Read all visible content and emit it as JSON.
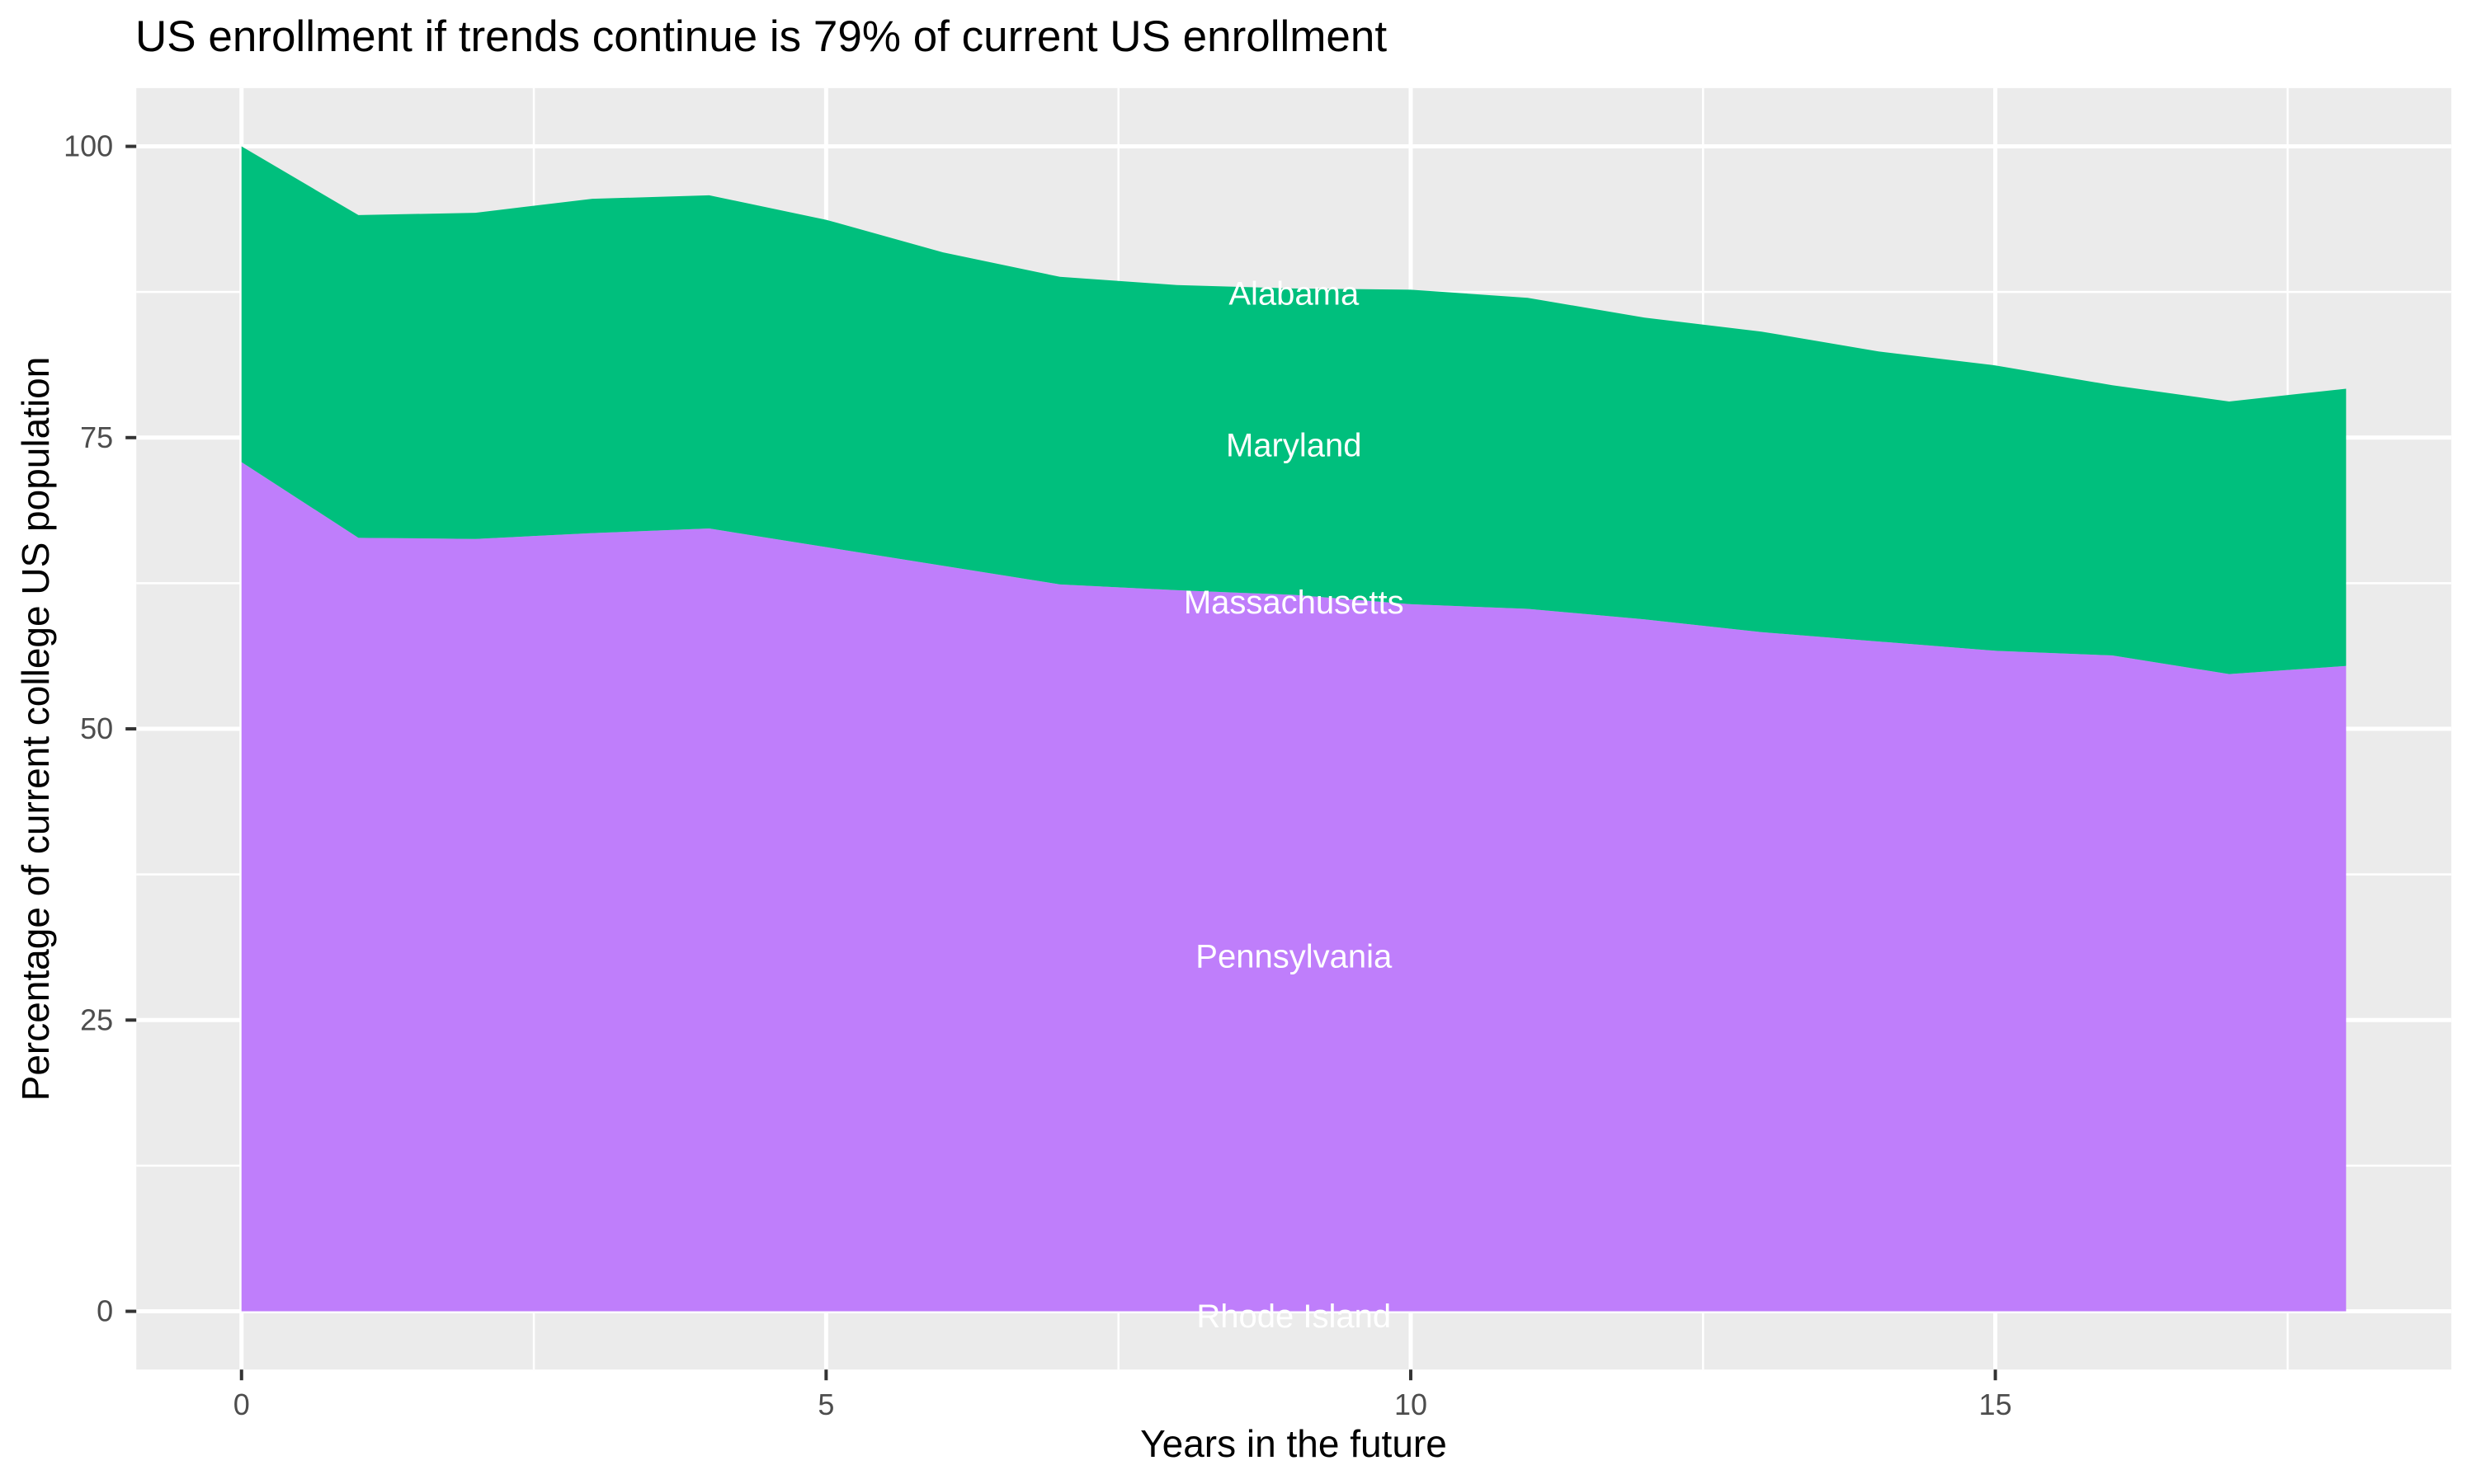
{
  "title": "US enrollment if trends continue is 79% of current US enrollment",
  "theme": {
    "page_background": "#FFFFFF",
    "panel_background": "#EBEBEB",
    "grid_color": "#FFFFFF",
    "tick_mark_color": "#333333",
    "tick_label_color": "#4D4D4D",
    "title_color": "#000000",
    "annotation_text_color": "#FFFFFF",
    "legend": "none"
  },
  "chart_data": {
    "type": "area",
    "stacked": true,
    "title": "US enrollment if trends continue is 79% of current US enrollment",
    "xlabel": "Years in the future",
    "ylabel": "Percentage of current college US population",
    "xlim": [
      -0.9,
      18.9
    ],
    "ylim": [
      -5,
      105
    ],
    "x_ticks": [
      0,
      5,
      10,
      15
    ],
    "x_minor_ticks": [
      2.5,
      7.5,
      12.5,
      17.5
    ],
    "y_ticks": [
      0,
      25,
      50,
      75,
      100
    ],
    "y_minor_ticks": [
      12.5,
      37.5,
      62.5,
      87.5
    ],
    "grid": "white major and minor gridlines on gray panel",
    "legend_position": "none",
    "x": [
      0,
      1,
      2,
      3,
      4,
      5,
      6,
      7,
      8,
      9,
      10,
      11,
      12,
      13,
      14,
      15,
      16,
      17,
      18
    ],
    "series": [
      {
        "name": "lower-purple-band (Rhode Island + Pennsylvania + Massachusetts)",
        "color": "#BF7EFB",
        "baseline": 0,
        "cumulative_top": [
          72.9,
          66.4,
          66.3,
          66.8,
          67.2,
          65.6,
          64.0,
          62.4,
          61.9,
          61.5,
          60.7,
          60.3,
          59.4,
          58.3,
          57.5,
          56.7,
          56.3,
          54.7,
          55.4
        ]
      },
      {
        "name": "upper-green-band (Maryland + Alabama)",
        "color": "#00BF7D",
        "cumulative_top": [
          100,
          94.1,
          94.3,
          95.5,
          95.8,
          93.7,
          90.9,
          88.8,
          88.1,
          87.8,
          87.7,
          87.0,
          85.3,
          84.1,
          82.4,
          81.2,
          79.5,
          78.1,
          79.2
        ]
      }
    ],
    "annotations": [
      {
        "text": "Alabama",
        "x": 9,
        "y": 87.4,
        "color": "#FFFFFF"
      },
      {
        "text": "Maryland",
        "x": 9,
        "y": 74.4,
        "color": "#FFFFFF"
      },
      {
        "text": "Massachusetts",
        "x": 9,
        "y": 60.9,
        "color": "#FFFFFF"
      },
      {
        "text": "Pennsylvania",
        "x": 9,
        "y": 30.5,
        "color": "#FFFFFF"
      },
      {
        "text": "Rhode Island",
        "x": 9,
        "y": -0.4,
        "color": "#FFFFFF"
      }
    ]
  },
  "axis_tick_labels": {
    "x": [
      "0",
      "5",
      "10",
      "15"
    ],
    "y": [
      "0",
      "25",
      "50",
      "75",
      "100"
    ]
  }
}
